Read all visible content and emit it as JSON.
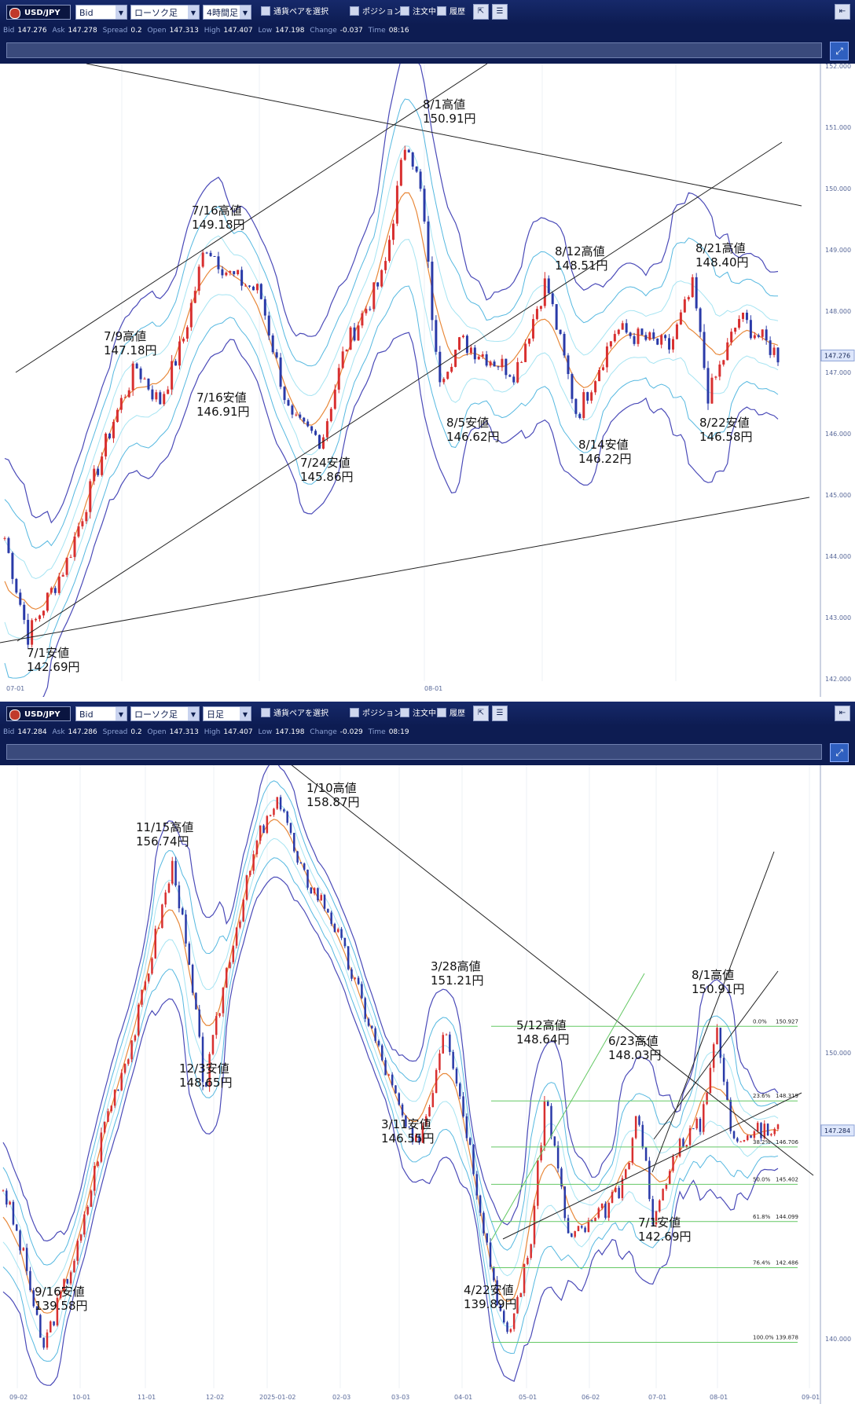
{
  "top": {
    "toolbar": {
      "symbol": "USD/JPY",
      "price_type": "Bid",
      "chart_type": "ローソク足",
      "timeframe": "4時間足",
      "pair_select": "通貨ペアを選択",
      "position": "ポジション",
      "order": "注文中",
      "history": "履歴"
    },
    "info": {
      "bid_label": "Bid",
      "bid": "147.276",
      "ask_label": "Ask",
      "ask": "147.278",
      "spread_label": "Spread",
      "spread": "0.2",
      "open_label": "Open",
      "open": "147.313",
      "high_label": "High",
      "high": "147.407",
      "low_label": "Low",
      "low": "147.198",
      "change_label": "Change",
      "change": "-0.037",
      "time_label": "Time",
      "time": "08:16"
    },
    "price_axis": [
      "152.000",
      "151.000",
      "150.000",
      "149.000",
      "148.000",
      "147.000",
      "146.000",
      "145.000",
      "144.000",
      "143.000",
      "142.000"
    ],
    "current_price": "147.276",
    "x_labels": [
      "07-01",
      "08-01"
    ],
    "annotations": [
      {
        "date": "8/1高値",
        "price": "150.91円"
      },
      {
        "date": "7/16高値",
        "price": "149.18円"
      },
      {
        "date": "8/12高値",
        "price": "148.51円"
      },
      {
        "date": "8/21高値",
        "price": "148.40円"
      },
      {
        "date": "7/9高値",
        "price": "147.18円"
      },
      {
        "date": "7/16安値",
        "price": "146.91円"
      },
      {
        "date": "8/5安値",
        "price": "146.62円"
      },
      {
        "date": "8/22安値",
        "price": "146.58円"
      },
      {
        "date": "8/14安値",
        "price": "146.22円"
      },
      {
        "date": "7/24安値",
        "price": "145.86円"
      },
      {
        "date": "7/1安値",
        "price": "142.69円"
      }
    ]
  },
  "bottom": {
    "toolbar": {
      "symbol": "USD/JPY",
      "price_type": "Bid",
      "chart_type": "ローソク足",
      "timeframe": "日足",
      "pair_select": "通貨ペアを選択",
      "position": "ポジション",
      "order": "注文中",
      "history": "履歴"
    },
    "info": {
      "bid_label": "Bid",
      "bid": "147.284",
      "ask_label": "Ask",
      "ask": "147.286",
      "spread_label": "Spread",
      "spread": "0.2",
      "open_label": "Open",
      "open": "147.313",
      "high_label": "High",
      "high": "147.407",
      "low_label": "Low",
      "low": "147.198",
      "change_label": "Change",
      "change": "-0.029",
      "time_label": "Time",
      "time": "08:19"
    },
    "price_axis": [
      "150.000",
      "140.000"
    ],
    "current_price": "147.284",
    "x_labels": [
      "09-02",
      "10-01",
      "11-01",
      "12-02",
      "2025-01-02",
      "02-03",
      "03-03",
      "04-01",
      "05-01",
      "06-02",
      "07-01",
      "08-01",
      "09-01"
    ],
    "fib_levels": [
      {
        "pct": "0.0%",
        "price": "150.927"
      },
      {
        "pct": "23.6%",
        "price": "148.319"
      },
      {
        "pct": "38.2%",
        "price": "146.706"
      },
      {
        "pct": "50.0%",
        "price": "145.402"
      },
      {
        "pct": "61.8%",
        "price": "144.099"
      },
      {
        "pct": "76.4%",
        "price": "142.486"
      },
      {
        "pct": "100.0%",
        "price": "139.878"
      }
    ],
    "annotations": [
      {
        "date": "1/10高値",
        "price": "158.87円"
      },
      {
        "date": "11/15高値",
        "price": "156.74円"
      },
      {
        "date": "3/28高値",
        "price": "151.21円"
      },
      {
        "date": "8/1高値",
        "price": "150.91円"
      },
      {
        "date": "5/12高値",
        "price": "148.64円"
      },
      {
        "date": "6/23高値",
        "price": "148.03円"
      },
      {
        "date": "12/3安値",
        "price": "148.65円"
      },
      {
        "date": "3/11安値",
        "price": "146.55円"
      },
      {
        "date": "7/1安値",
        "price": "142.69円"
      },
      {
        "date": "4/22安値",
        "price": "139.89円"
      },
      {
        "date": "9/16安値",
        "price": "139.58円"
      }
    ]
  }
}
